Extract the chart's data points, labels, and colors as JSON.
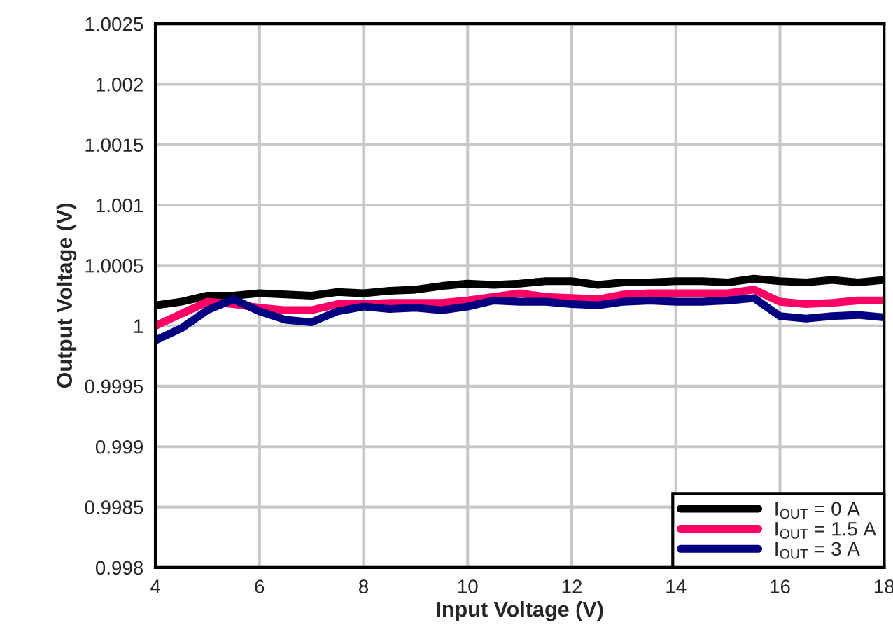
{
  "chart_data": {
    "type": "line",
    "xlabel": "Input Voltage (V)",
    "ylabel": "Output Voltage (V)",
    "x": [
      4,
      4.5,
      5,
      5.5,
      6,
      6.5,
      7,
      7.5,
      8,
      8.5,
      9,
      9.5,
      10,
      10.5,
      11,
      11.5,
      12,
      12.5,
      13,
      13.5,
      14,
      14.5,
      15,
      15.5,
      16,
      16.5,
      17,
      17.5,
      18
    ],
    "series": [
      {
        "name": "I$_{OUT}$ = 0 A",
        "color": "#000000",
        "values": [
          1.00017,
          1.0002,
          1.00025,
          1.00025,
          1.00027,
          1.00026,
          1.00025,
          1.00028,
          1.00027,
          1.00029,
          1.0003,
          1.00033,
          1.00035,
          1.00034,
          1.00035,
          1.00037,
          1.00037,
          1.00034,
          1.00036,
          1.00036,
          1.00037,
          1.00037,
          1.00036,
          1.00039,
          1.00037,
          1.00036,
          1.00038,
          1.00036,
          1.00038
        ]
      },
      {
        "name": "I$_{OUT}$ = 1.5 A",
        "color": "#ff0066",
        "values": [
          1.0,
          1.0001,
          1.0002,
          1.00018,
          1.00015,
          1.00013,
          1.00013,
          1.00018,
          1.00018,
          1.00019,
          1.00019,
          1.00019,
          1.00021,
          1.00024,
          1.00027,
          1.00024,
          1.00023,
          1.00022,
          1.00026,
          1.00027,
          1.00027,
          1.00027,
          1.00027,
          1.0003,
          1.0002,
          1.00018,
          1.00019,
          1.00021,
          1.00021
        ]
      },
      {
        "name": "I$_{OUT}$ = 3 A",
        "color": "#000080",
        "values": [
          0.99988,
          0.99998,
          1.00013,
          1.00022,
          1.00012,
          1.00005,
          1.00003,
          1.00012,
          1.00016,
          1.00014,
          1.00015,
          1.00013,
          1.00016,
          1.00021,
          1.0002,
          1.0002,
          1.00018,
          1.00017,
          1.0002,
          1.00021,
          1.0002,
          1.0002,
          1.00021,
          1.00023,
          1.00008,
          1.00006,
          1.00008,
          1.00009,
          1.00007
        ]
      }
    ],
    "xlim": [
      4,
      18
    ],
    "xticks": [
      4,
      6,
      8,
      10,
      12,
      14,
      16,
      18
    ],
    "ylim": [
      0.998,
      1.0025
    ],
    "yticks": [
      0.998,
      0.9985,
      0.999,
      0.9995,
      1,
      1.0005,
      1.001,
      1.0015,
      1.002,
      1.0025
    ],
    "grid": true,
    "legend": "bottom right",
    "marker": "none",
    "line_style": "solid"
  }
}
